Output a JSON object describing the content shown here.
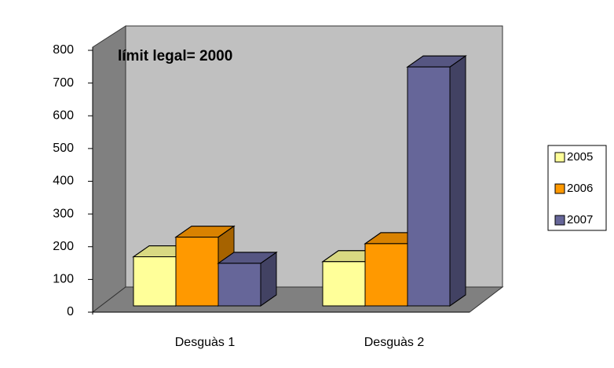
{
  "chart_data": {
    "type": "bar3d",
    "annotation": "límit legal= 2000",
    "categories": [
      "Desguàs 1",
      "Desguàs 2"
    ],
    "series": [
      {
        "name": "2005",
        "color": "#ffff99",
        "values": [
          150,
          135
        ]
      },
      {
        "name": "2006",
        "color": "#ff9900",
        "values": [
          210,
          190
        ]
      },
      {
        "name": "2007",
        "color": "#666699",
        "values": [
          130,
          730
        ]
      }
    ],
    "ylim": [
      0,
      800
    ],
    "yticks": [
      0,
      100,
      200,
      300,
      400,
      500,
      600,
      700,
      800
    ],
    "grid": false,
    "legend": "right"
  }
}
